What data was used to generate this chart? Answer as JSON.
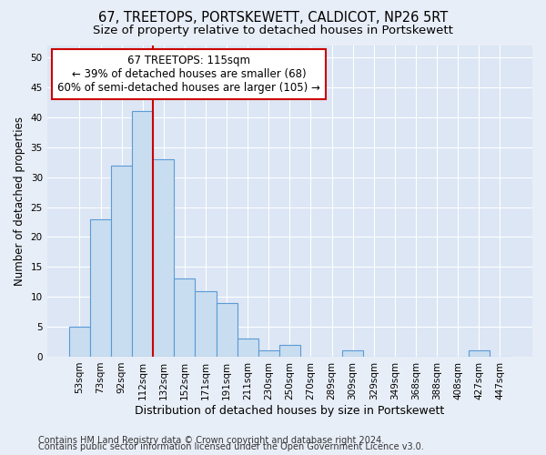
{
  "title": "67, TREETOPS, PORTSKEWETT, CALDICOT, NP26 5RT",
  "subtitle": "Size of property relative to detached houses in Portskewett",
  "xlabel": "Distribution of detached houses by size in Portskewett",
  "ylabel": "Number of detached properties",
  "footnote1": "Contains HM Land Registry data © Crown copyright and database right 2024.",
  "footnote2": "Contains public sector information licensed under the Open Government Licence v3.0.",
  "categories": [
    "53sqm",
    "73sqm",
    "92sqm",
    "112sqm",
    "132sqm",
    "152sqm",
    "171sqm",
    "191sqm",
    "211sqm",
    "230sqm",
    "250sqm",
    "270sqm",
    "289sqm",
    "309sqm",
    "329sqm",
    "349sqm",
    "368sqm",
    "388sqm",
    "408sqm",
    "427sqm",
    "447sqm"
  ],
  "values": [
    5,
    23,
    32,
    41,
    33,
    13,
    11,
    9,
    3,
    1,
    2,
    0,
    0,
    1,
    0,
    0,
    0,
    0,
    0,
    1,
    0
  ],
  "bar_color": "#c9ddf0",
  "bar_edge_color": "#5b9bd5",
  "vline_x": 3.5,
  "vline_color": "#cc0000",
  "annotation_line1": "67 TREETOPS: 115sqm",
  "annotation_line2": "← 39% of detached houses are smaller (68)",
  "annotation_line3": "60% of semi-detached houses are larger (105) →",
  "ylim": [
    0,
    52
  ],
  "yticks": [
    0,
    5,
    10,
    15,
    20,
    25,
    30,
    35,
    40,
    45,
    50
  ],
  "background_color": "#e8eef7",
  "plot_bg_color": "#dce6f5",
  "title_fontsize": 10.5,
  "subtitle_fontsize": 9.5,
  "xlabel_fontsize": 9,
  "ylabel_fontsize": 8.5,
  "tick_fontsize": 7.5,
  "annotation_fontsize": 8.5,
  "footnote_fontsize": 7
}
